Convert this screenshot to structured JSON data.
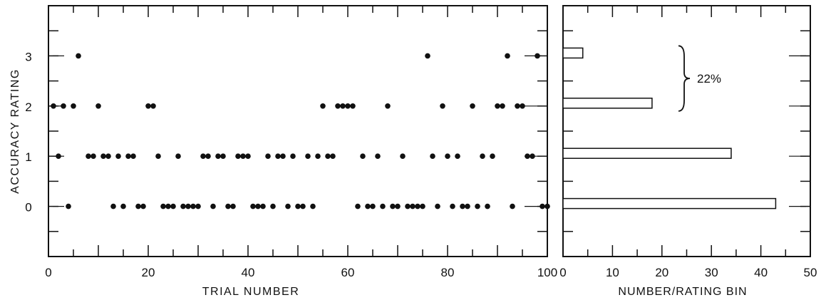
{
  "chart_data": [
    {
      "type": "scatter",
      "xlabel": "TRIAL NUMBER",
      "ylabel": "ACCURACY RATING",
      "xlim": [
        0,
        100
      ],
      "ylim": [
        -1,
        4
      ],
      "xticks": [
        0,
        20,
        40,
        60,
        80,
        100
      ],
      "yticks": [
        0,
        1,
        2,
        3
      ],
      "grid": false,
      "points": [
        [
          1,
          2
        ],
        [
          2,
          1
        ],
        [
          3,
          2
        ],
        [
          4,
          0
        ],
        [
          5,
          2
        ],
        [
          6,
          3
        ],
        [
          8,
          1
        ],
        [
          9,
          1
        ],
        [
          10,
          2
        ],
        [
          11,
          1
        ],
        [
          12,
          1
        ],
        [
          13,
          0
        ],
        [
          14,
          1
        ],
        [
          15,
          0
        ],
        [
          16,
          1
        ],
        [
          17,
          1
        ],
        [
          18,
          0
        ],
        [
          19,
          0
        ],
        [
          20,
          2
        ],
        [
          21,
          2
        ],
        [
          22,
          1
        ],
        [
          23,
          0
        ],
        [
          24,
          0
        ],
        [
          25,
          0
        ],
        [
          26,
          1
        ],
        [
          27,
          0
        ],
        [
          28,
          0
        ],
        [
          29,
          0
        ],
        [
          30,
          0
        ],
        [
          31,
          1
        ],
        [
          32,
          1
        ],
        [
          33,
          0
        ],
        [
          34,
          1
        ],
        [
          35,
          1
        ],
        [
          36,
          0
        ],
        [
          37,
          0
        ],
        [
          38,
          1
        ],
        [
          39,
          1
        ],
        [
          40,
          1
        ],
        [
          41,
          0
        ],
        [
          42,
          0
        ],
        [
          43,
          0
        ],
        [
          44,
          1
        ],
        [
          45,
          0
        ],
        [
          46,
          1
        ],
        [
          47,
          1
        ],
        [
          48,
          0
        ],
        [
          49,
          1
        ],
        [
          50,
          0
        ],
        [
          51,
          0
        ],
        [
          52,
          1
        ],
        [
          53,
          0
        ],
        [
          54,
          1
        ],
        [
          55,
          2
        ],
        [
          56,
          1
        ],
        [
          57,
          1
        ],
        [
          58,
          2
        ],
        [
          59,
          2
        ],
        [
          60,
          2
        ],
        [
          61,
          2
        ],
        [
          62,
          0
        ],
        [
          63,
          1
        ],
        [
          64,
          0
        ],
        [
          65,
          0
        ],
        [
          66,
          1
        ],
        [
          67,
          0
        ],
        [
          68,
          2
        ],
        [
          69,
          0
        ],
        [
          70,
          0
        ],
        [
          71,
          1
        ],
        [
          72,
          0
        ],
        [
          73,
          0
        ],
        [
          74,
          0
        ],
        [
          75,
          0
        ],
        [
          76,
          3
        ],
        [
          77,
          1
        ],
        [
          78,
          0
        ],
        [
          79,
          2
        ],
        [
          80,
          1
        ],
        [
          81,
          0
        ],
        [
          82,
          1
        ],
        [
          83,
          0
        ],
        [
          84,
          0
        ],
        [
          85,
          2
        ],
        [
          86,
          0
        ],
        [
          87,
          1
        ],
        [
          88,
          0
        ],
        [
          89,
          1
        ],
        [
          90,
          2
        ],
        [
          91,
          2
        ],
        [
          92,
          3
        ],
        [
          93,
          0
        ],
        [
          94,
          2
        ],
        [
          95,
          2
        ],
        [
          96,
          1
        ],
        [
          97,
          1
        ],
        [
          98,
          3
        ],
        [
          99,
          0
        ],
        [
          100,
          0
        ]
      ]
    },
    {
      "type": "bar",
      "orientation": "horizontal",
      "xlabel": "NUMBER/RATING BIN",
      "xlim": [
        0,
        50
      ],
      "xticks": [
        0,
        10,
        20,
        30,
        40,
        50
      ],
      "categories": [
        0,
        1,
        2,
        3
      ],
      "values": [
        43,
        34,
        18,
        4
      ],
      "annotation": "22%"
    }
  ]
}
